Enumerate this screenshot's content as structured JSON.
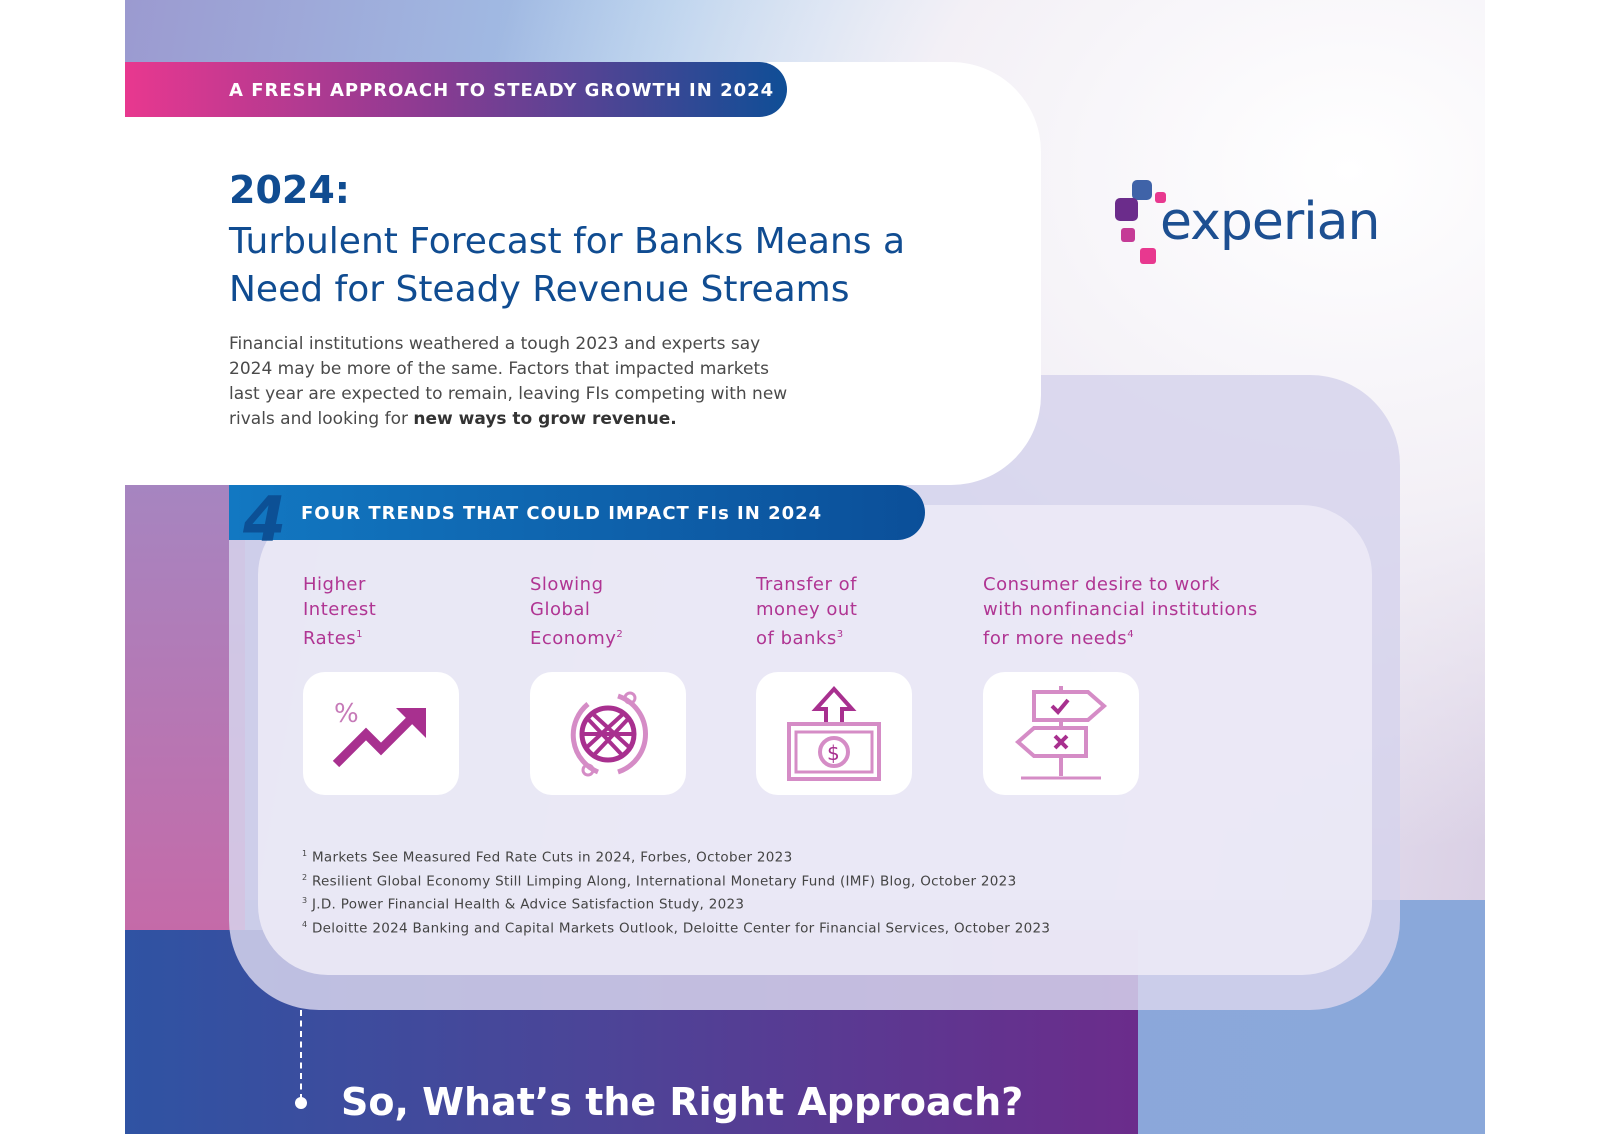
{
  "header": {
    "band": "A FRESH APPROACH TO STEADY GROWTH IN 2024",
    "year": "2024:",
    "headline": "Turbulent Forecast for Banks Means a Need for Steady Revenue Streams",
    "intro": "Financial institutions weathered a tough 2023 and experts say 2024 may be more of the same. Factors that impacted markets last year are expected to remain, leaving FIs competing with new rivals and looking for ",
    "intro_bold": "new ways to grow revenue."
  },
  "logo": {
    "text": "experian",
    "colors": [
      "#3f63a8",
      "#6b2c8b",
      "#c53b96",
      "#e8388f"
    ]
  },
  "trends": {
    "number": "4",
    "title": "FOUR TRENDS THAT COULD IMPACT FIs IN 2024",
    "items": [
      {
        "label": "Higher\nInterest\nRates",
        "sup": "1",
        "icon": "trending-up-percent-icon"
      },
      {
        "label": "Slowing\nGlobal\nEconomy",
        "sup": "2",
        "icon": "globe-cycle-icon"
      },
      {
        "label": "Transfer of\nmoney out\nof banks",
        "sup": "3",
        "icon": "money-out-icon"
      },
      {
        "label": "Consumer desire to work\nwith nonfinancial institutions\nfor more needs",
        "sup": "4",
        "icon": "signpost-icon"
      }
    ],
    "footnotes": [
      {
        "n": "1",
        "text": "Markets See Measured Fed Rate Cuts in 2024, Forbes, October 2023"
      },
      {
        "n": "2",
        "text": "Resilient Global Economy Still Limping Along, International Monetary Fund (IMF) Blog, October 2023"
      },
      {
        "n": "3",
        "text": "J.D. Power Financial Health & Advice Satisfaction Study, 2023"
      },
      {
        "n": "4",
        "text": "Deloitte 2024 Banking and Capital Markets Outlook, Deloitte Center for Financial Services, October 2023"
      }
    ]
  },
  "next": {
    "title": "So, What’s the Right Approach?"
  },
  "colors": {
    "blue": "#104c91",
    "magenta": "#b03593",
    "pink": "#e8388f"
  }
}
